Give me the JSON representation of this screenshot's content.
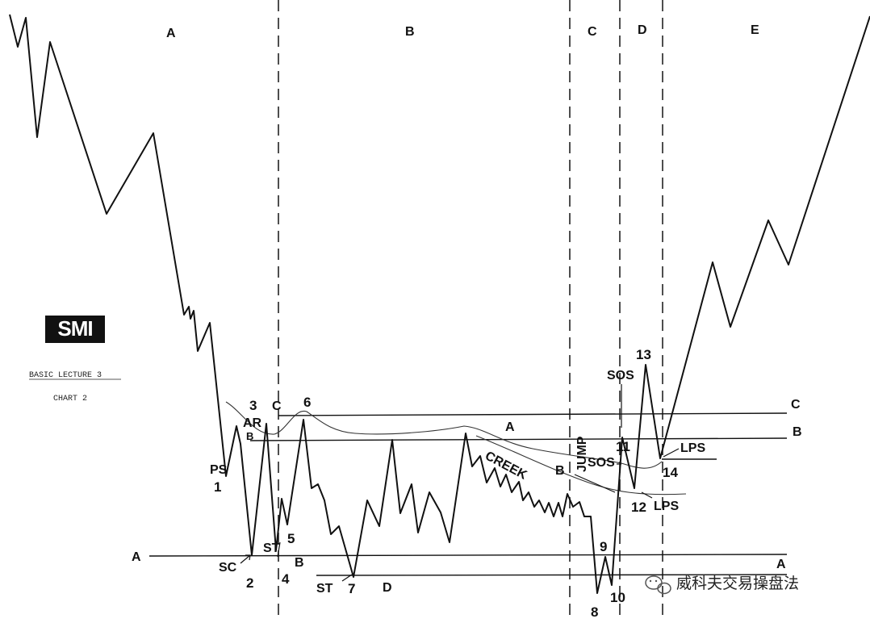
{
  "phases": [
    "A",
    "B",
    "C",
    "D",
    "E"
  ],
  "logo": {
    "text": "SMI"
  },
  "caption": {
    "line1": "BASIC LECTURE 3",
    "line2": "CHART 2"
  },
  "lines": {
    "support": "A",
    "resistance_c": "C",
    "resistance_b": "B",
    "creek": "CREEK",
    "creek_a": "A",
    "creek_b": "B",
    "left_c": "C",
    "left_b": "B",
    "left_a": "A",
    "right_a": "A"
  },
  "events": {
    "ps": "PS",
    "sc": "SC",
    "ar": "AR",
    "st1": "ST",
    "st2": "ST",
    "b_left": "B",
    "d_bottom": "D",
    "jump": "JUMP",
    "sos1": "SOS",
    "sos2": "SOS",
    "lps1": "LPS",
    "lps2": "LPS"
  },
  "points": [
    "1",
    "2",
    "3",
    "4",
    "5",
    "6",
    "7",
    "8",
    "9",
    "10",
    "11",
    "12",
    "13",
    "14"
  ],
  "watermark": {
    "text": "威科夫交易操盘法",
    "icon": "wechat-icon"
  }
}
